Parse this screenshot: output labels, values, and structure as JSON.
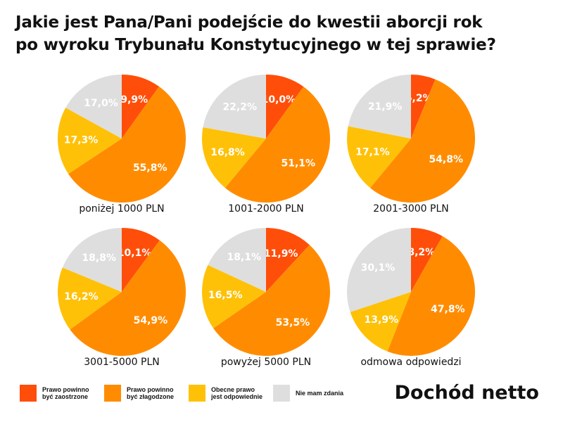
{
  "title": {
    "line1": "Jakie jest Pana/Pani podejście do kwestii aborcji rok",
    "line2": "po wyroku Trybunału Konstytucyjnego w tej sprawie?"
  },
  "footer": "Dochód netto",
  "colors": {
    "zaostrzone": "#FF4E0A",
    "zlagodzone": "#FF8C00",
    "odpowiednie": "#FFC107",
    "nie_mam_zdania": "#DEDEDE"
  },
  "legend": [
    {
      "key": "zaostrzone",
      "label": "Prawo powinno\nbyć zaostrzone"
    },
    {
      "key": "zlagodzone",
      "label": "Prawo powinno\nbyć złagodzone"
    },
    {
      "key": "odpowiednie",
      "label": "Obecne prawo\njest odpowiednie"
    },
    {
      "key": "nie_mam_zdania",
      "label": "Nie mam zdania"
    }
  ],
  "chart_data": [
    {
      "type": "pie",
      "label": "poniżej 1000 PLN",
      "slices": [
        {
          "key": "zaostrzone",
          "value": 9.9,
          "text": "9,9%"
        },
        {
          "key": "zlagodzone",
          "value": 55.8,
          "text": "55,8%"
        },
        {
          "key": "odpowiednie",
          "value": 17.3,
          "text": "17,3%"
        },
        {
          "key": "nie_mam_zdania",
          "value": 17.0,
          "text": "17,0%"
        }
      ]
    },
    {
      "type": "pie",
      "label": "1001-2000 PLN",
      "slices": [
        {
          "key": "zaostrzone",
          "value": 10.0,
          "text": "10,0%"
        },
        {
          "key": "zlagodzone",
          "value": 51.1,
          "text": "51,1%"
        },
        {
          "key": "odpowiednie",
          "value": 16.8,
          "text": "16,8%"
        },
        {
          "key": "nie_mam_zdania",
          "value": 22.2,
          "text": "22,2%"
        }
      ]
    },
    {
      "type": "pie",
      "label": "2001-3000 PLN",
      "slices": [
        {
          "key": "zaostrzone",
          "value": 6.2,
          "text": "6,2%"
        },
        {
          "key": "zlagodzone",
          "value": 54.8,
          "text": "54,8%"
        },
        {
          "key": "odpowiednie",
          "value": 17.1,
          "text": "17,1%"
        },
        {
          "key": "nie_mam_zdania",
          "value": 21.9,
          "text": "21,9%"
        }
      ]
    },
    {
      "type": "pie",
      "label": "3001-5000 PLN",
      "slices": [
        {
          "key": "zaostrzone",
          "value": 10.1,
          "text": "10,1%"
        },
        {
          "key": "zlagodzone",
          "value": 54.9,
          "text": "54,9%"
        },
        {
          "key": "odpowiednie",
          "value": 16.2,
          "text": "16,2%"
        },
        {
          "key": "nie_mam_zdania",
          "value": 18.8,
          "text": "18,8%"
        }
      ]
    },
    {
      "type": "pie",
      "label": "powyżej 5000 PLN",
      "slices": [
        {
          "key": "zaostrzone",
          "value": 11.9,
          "text": "11,9%"
        },
        {
          "key": "zlagodzone",
          "value": 53.5,
          "text": "53,5%"
        },
        {
          "key": "odpowiednie",
          "value": 16.5,
          "text": "16,5%"
        },
        {
          "key": "nie_mam_zdania",
          "value": 18.1,
          "text": "18,1%"
        }
      ]
    },
    {
      "type": "pie",
      "label": "odmowa odpowiedzi",
      "slices": [
        {
          "key": "zaostrzone",
          "value": 8.2,
          "text": "8,2%"
        },
        {
          "key": "zlagodzone",
          "value": 47.8,
          "text": "47,8%"
        },
        {
          "key": "odpowiednie",
          "value": 13.9,
          "text": "13,9%"
        },
        {
          "key": "nie_mam_zdania",
          "value": 30.1,
          "text": "30,1%"
        }
      ]
    }
  ]
}
